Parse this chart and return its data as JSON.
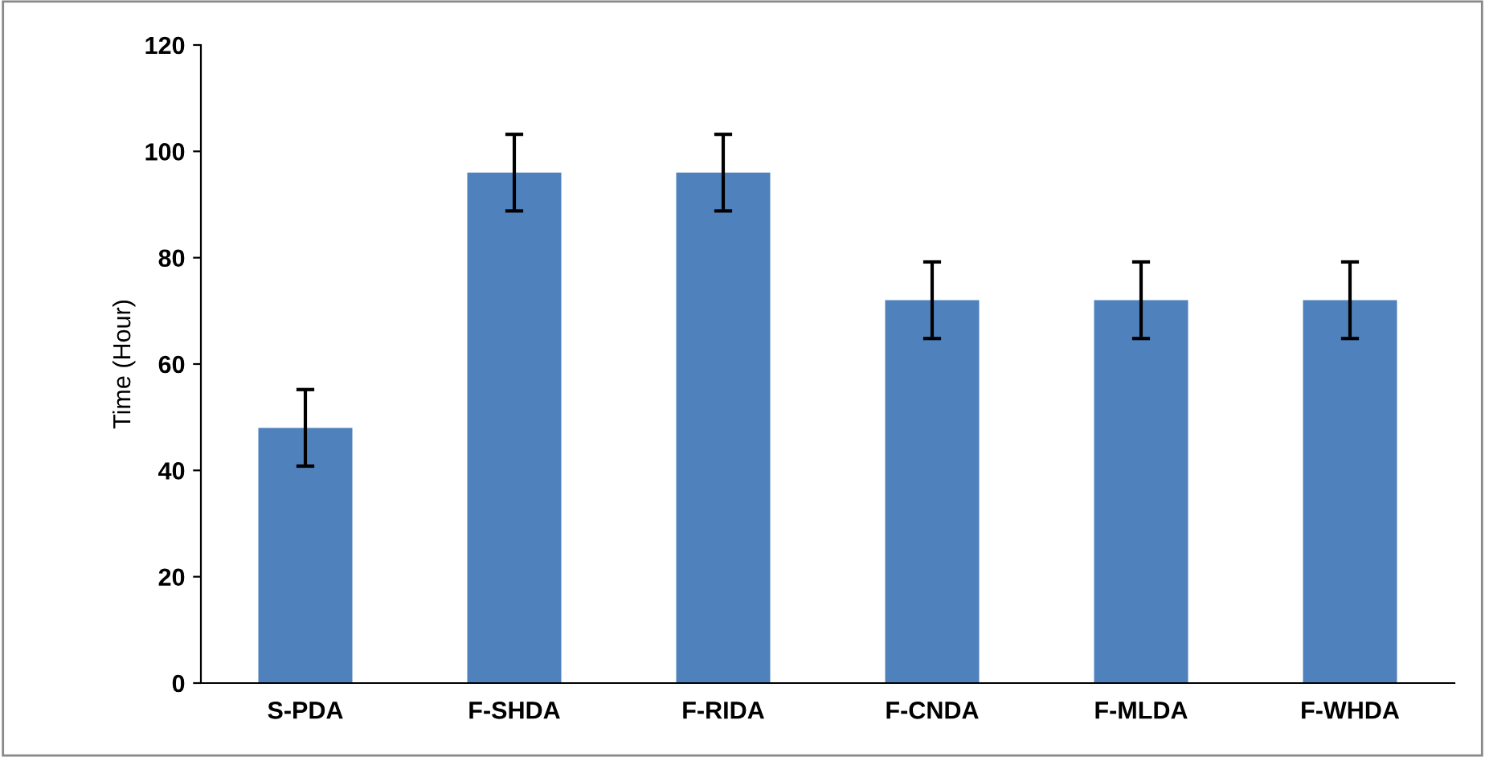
{
  "chart_data": {
    "type": "bar",
    "ylabel": "Time (Hour)",
    "categories": [
      "S-PDA",
      "F-SHDA",
      "F-RIDA",
      "F-CNDA",
      "F-MLDA",
      "F-WHDA"
    ],
    "values": [
      48,
      96,
      96,
      72,
      72,
      72
    ],
    "errors": [
      7.2,
      7.2,
      7.2,
      7.2,
      7.2,
      7.2
    ],
    "color": "#4f81bd",
    "ylim": [
      0,
      120
    ],
    "yticks": [
      0,
      20,
      40,
      60,
      80,
      100,
      120
    ],
    "grid": false,
    "legend": false
  }
}
